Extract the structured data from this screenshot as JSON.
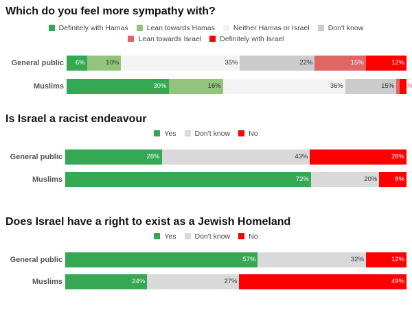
{
  "chart_data": [
    {
      "type": "bar",
      "stacked": true,
      "orientation": "horizontal",
      "title": "Which do you feel more sympathy with?",
      "categories": [
        "General public",
        "Muslims"
      ],
      "series": [
        {
          "name": "Definitely with Hamas",
          "color": "#34a853",
          "values": [
            6,
            30
          ]
        },
        {
          "name": "Lean towards Hamas",
          "color": "#93c47d",
          "values": [
            10,
            16
          ]
        },
        {
          "name": "Neither Hamas or Israel",
          "color": "#f3f3f3",
          "values": [
            35,
            36
          ]
        },
        {
          "name": "Don't know",
          "color": "#cccccc",
          "values": [
            22,
            15
          ]
        },
        {
          "name": "Lean towards Israel",
          "color": "#e06666",
          "values": [
            15,
            1
          ]
        },
        {
          "name": "Definitely with Israel",
          "color": "#ff0000",
          "values": [
            12,
            2
          ]
        }
      ],
      "legend": "top"
    },
    {
      "type": "bar",
      "stacked": true,
      "orientation": "horizontal",
      "title": "Is Israel a racist endeavour",
      "categories": [
        "General public",
        "Muslims"
      ],
      "series": [
        {
          "name": "Yes",
          "color": "#34a853",
          "values": [
            28,
            72
          ]
        },
        {
          "name": "Don't know",
          "color": "#d9d9d9",
          "values": [
            43,
            20
          ]
        },
        {
          "name": "No",
          "color": "#ff0000",
          "values": [
            28,
            8
          ]
        }
      ],
      "legend": "top"
    },
    {
      "type": "bar",
      "stacked": true,
      "orientation": "horizontal",
      "title": "Does Israel have a right to exist as a Jewish Homeland",
      "categories": [
        "General public",
        "Muslims"
      ],
      "series": [
        {
          "name": "Yes",
          "color": "#34a853",
          "values": [
            57,
            24
          ]
        },
        {
          "name": "Don't know",
          "color": "#d9d9d9",
          "values": [
            32,
            27
          ]
        },
        {
          "name": "No",
          "color": "#ff0000",
          "values": [
            12,
            49
          ]
        }
      ],
      "legend": "top"
    }
  ]
}
